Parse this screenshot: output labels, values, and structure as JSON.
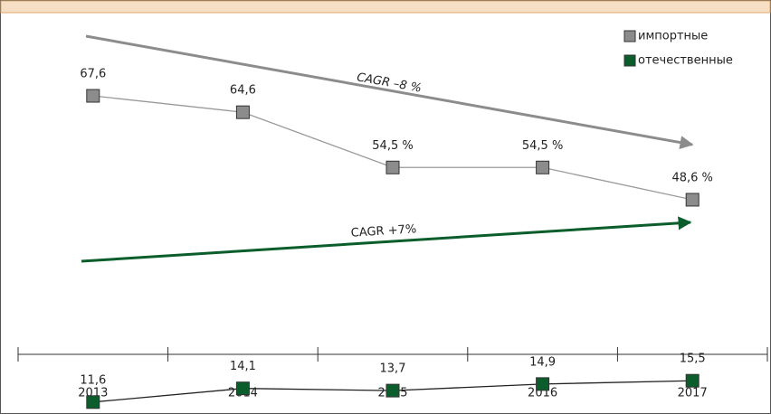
{
  "chart_data": {
    "type": "line",
    "categories": [
      "2013",
      "2014",
      "2015",
      "2016",
      "2017"
    ],
    "series": [
      {
        "name": "импортные",
        "color": "#8c8c8c",
        "values": [
          67.6,
          64.6,
          54.5,
          54.5,
          48.6
        ],
        "value_labels": [
          "67,6",
          "64,6",
          "54,5 %",
          "54,5 %",
          "48,6 %"
        ]
      },
      {
        "name": "отечественные",
        "color": "#0b5e2b",
        "values": [
          11.6,
          14.1,
          13.7,
          14.9,
          15.5
        ],
        "value_labels": [
          "11,6",
          "14,1",
          "13,7",
          "14,9",
          "15,5"
        ]
      }
    ],
    "annotations": [
      "CAGR –8 %",
      "CAGR +7%"
    ],
    "ylim": [
      10,
      70
    ],
    "legend": "upper right"
  }
}
